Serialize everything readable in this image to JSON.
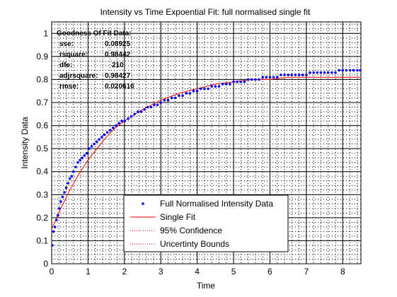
{
  "chart_data": {
    "type": "scatter",
    "title": "Intensity vs Time Expoential Fit: full normalised single fit",
    "xlabel": "Time",
    "ylabel": "Intensity Data",
    "xlim": [
      0,
      8.5
    ],
    "ylim": [
      0,
      1.05
    ],
    "xticks": [
      "0",
      "1",
      "2",
      "3",
      "4",
      "5",
      "6",
      "7",
      "8"
    ],
    "yticks": [
      "0",
      "0.1",
      "0.2",
      "0.3",
      "0.4",
      "0.5",
      "0.6",
      "0.7",
      "0.8",
      "0.9",
      "1"
    ],
    "grid": "major solid, minor dotted",
    "legend_position": "bottom-center",
    "legend": [
      {
        "label": "Full Normalised Intensity Data",
        "color": "#0000ff",
        "marker": "point"
      },
      {
        "label": "Single Fit",
        "color": "#ff0000",
        "marker": "line"
      },
      {
        "label": "95% Confidence",
        "color": "#ff0000",
        "marker": "dotted"
      },
      {
        "label": "Uncertinty Bounds",
        "color": "#ff0000",
        "marker": "dotted"
      }
    ],
    "goodness_of_fit": {
      "heading": "Goodness Of Fit Data:",
      "rows": [
        {
          "key": "sse:",
          "value": "0.08925"
        },
        {
          "key": "rsquare:",
          "value": "0.98442"
        },
        {
          "key": "dfe:",
          "value": "210"
        },
        {
          "key": "adjrsquare:",
          "value": "0.98427"
        },
        {
          "key": "rmse:",
          "value": "0.020616"
        }
      ]
    },
    "series": [
      {
        "name": "Full Normalised Intensity Data",
        "color": "#0000ff",
        "points": [
          [
            0.02,
            0.08
          ],
          [
            0.05,
            0.14
          ],
          [
            0.09,
            0.16
          ],
          [
            0.13,
            0.19
          ],
          [
            0.17,
            0.21
          ],
          [
            0.21,
            0.24
          ],
          [
            0.25,
            0.27
          ],
          [
            0.3,
            0.29
          ],
          [
            0.35,
            0.31
          ],
          [
            0.4,
            0.33
          ],
          [
            0.45,
            0.35
          ],
          [
            0.5,
            0.37
          ],
          [
            0.55,
            0.38
          ],
          [
            0.6,
            0.4
          ],
          [
            0.66,
            0.42
          ],
          [
            0.72,
            0.44
          ],
          [
            0.78,
            0.45
          ],
          [
            0.84,
            0.46
          ],
          [
            0.9,
            0.47
          ],
          [
            0.96,
            0.48
          ],
          [
            1.03,
            0.5
          ],
          [
            1.1,
            0.51
          ],
          [
            1.17,
            0.52
          ],
          [
            1.24,
            0.53
          ],
          [
            1.31,
            0.54
          ],
          [
            1.38,
            0.55
          ],
          [
            1.45,
            0.56
          ],
          [
            1.53,
            0.57
          ],
          [
            1.61,
            0.58
          ],
          [
            1.69,
            0.59
          ],
          [
            1.77,
            0.6
          ],
          [
            1.85,
            0.61
          ],
          [
            1.93,
            0.62
          ],
          [
            2.01,
            0.62
          ],
          [
            2.1,
            0.63
          ],
          [
            2.19,
            0.64
          ],
          [
            2.28,
            0.65
          ],
          [
            2.37,
            0.66
          ],
          [
            2.46,
            0.66
          ],
          [
            2.55,
            0.67
          ],
          [
            2.64,
            0.68
          ],
          [
            2.73,
            0.68
          ],
          [
            2.82,
            0.69
          ],
          [
            2.91,
            0.69
          ],
          [
            3.0,
            0.7
          ],
          [
            3.1,
            0.71
          ],
          [
            3.2,
            0.71
          ],
          [
            3.3,
            0.72
          ],
          [
            3.4,
            0.72
          ],
          [
            3.5,
            0.73
          ],
          [
            3.6,
            0.73
          ],
          [
            3.7,
            0.74
          ],
          [
            3.8,
            0.74
          ],
          [
            3.9,
            0.75
          ],
          [
            4.0,
            0.75
          ],
          [
            4.1,
            0.76
          ],
          [
            4.2,
            0.76
          ],
          [
            4.3,
            0.76
          ],
          [
            4.4,
            0.77
          ],
          [
            4.5,
            0.77
          ],
          [
            4.6,
            0.77
          ],
          [
            4.7,
            0.78
          ],
          [
            4.8,
            0.78
          ],
          [
            4.9,
            0.78
          ],
          [
            5.0,
            0.79
          ],
          [
            5.1,
            0.79
          ],
          [
            5.2,
            0.79
          ],
          [
            5.3,
            0.79
          ],
          [
            5.4,
            0.8
          ],
          [
            5.5,
            0.8
          ],
          [
            5.6,
            0.8
          ],
          [
            5.7,
            0.8
          ],
          [
            5.8,
            0.81
          ],
          [
            5.9,
            0.81
          ],
          [
            6.0,
            0.81
          ],
          [
            6.1,
            0.81
          ],
          [
            6.2,
            0.81
          ],
          [
            6.3,
            0.82
          ],
          [
            6.4,
            0.82
          ],
          [
            6.5,
            0.82
          ],
          [
            6.6,
            0.82
          ],
          [
            6.7,
            0.82
          ],
          [
            6.8,
            0.82
          ],
          [
            6.9,
            0.82
          ],
          [
            7.0,
            0.82
          ],
          [
            7.1,
            0.83
          ],
          [
            7.2,
            0.83
          ],
          [
            7.3,
            0.83
          ],
          [
            7.4,
            0.83
          ],
          [
            7.5,
            0.83
          ],
          [
            7.6,
            0.83
          ],
          [
            7.7,
            0.83
          ],
          [
            7.8,
            0.83
          ],
          [
            7.9,
            0.84
          ],
          [
            8.0,
            0.84
          ],
          [
            8.1,
            0.84
          ],
          [
            8.2,
            0.84
          ],
          [
            8.3,
            0.84
          ],
          [
            8.4,
            0.84
          ],
          [
            8.48,
            0.84
          ]
        ]
      },
      {
        "name": "Single Fit",
        "color": "#ff0000",
        "points": [
          [
            0.0,
            0.15
          ],
          [
            0.25,
            0.24
          ],
          [
            0.5,
            0.32
          ],
          [
            0.75,
            0.39
          ],
          [
            1.0,
            0.45
          ],
          [
            1.25,
            0.5
          ],
          [
            1.5,
            0.55
          ],
          [
            1.75,
            0.59
          ],
          [
            2.0,
            0.62
          ],
          [
            2.5,
            0.67
          ],
          [
            3.0,
            0.71
          ],
          [
            3.5,
            0.74
          ],
          [
            4.0,
            0.76
          ],
          [
            4.5,
            0.78
          ],
          [
            5.0,
            0.79
          ],
          [
            5.5,
            0.8
          ],
          [
            6.0,
            0.8
          ],
          [
            6.5,
            0.81
          ],
          [
            7.0,
            0.81
          ],
          [
            7.5,
            0.81
          ],
          [
            8.0,
            0.81
          ],
          [
            8.5,
            0.81
          ]
        ]
      }
    ]
  }
}
